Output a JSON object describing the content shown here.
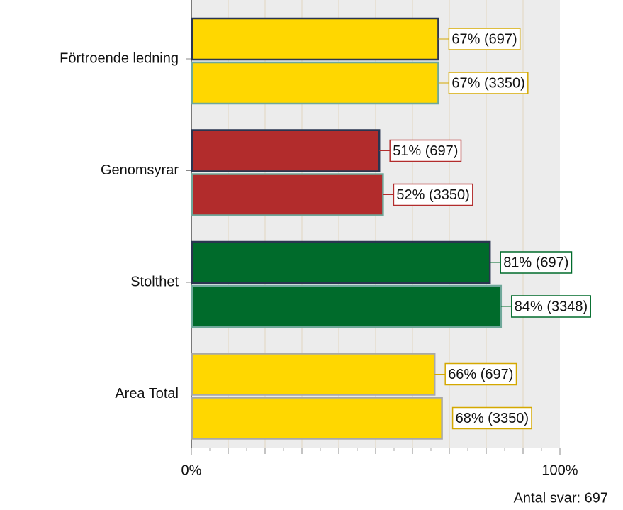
{
  "chart_data": {
    "type": "hbar_grouped",
    "categories": [
      "Förtroende ledning",
      "Genomsyrar",
      "Stolthet",
      "Area Total"
    ],
    "category_colors": [
      "#ffd700",
      "#b22c2c",
      "#006b2b",
      "#ffd700"
    ],
    "series": [
      {
        "values": [
          67,
          51,
          81,
          66
        ],
        "value_labels": [
          "67% (697)",
          "51% (697)",
          "81% (697)",
          "66% (697)"
        ],
        "edgecolors": [
          "#2a3550",
          "#2a3550",
          "#2a3550",
          "#a8a8a8"
        ]
      },
      {
        "values": [
          67,
          52,
          84,
          68
        ],
        "value_labels": [
          "67% (3350)",
          "52% (3350)",
          "84% (3348)",
          "68% (3350)"
        ],
        "edgecolors": [
          "#6fa89a",
          "#6fa89a",
          "#6fa89a",
          "#a8a8a8"
        ]
      }
    ],
    "xlim": [
      0,
      100
    ],
    "xticks": [
      {
        "value": 0,
        "label": "0%"
      },
      {
        "value": 100,
        "label": "100%"
      }
    ],
    "minor_xticks": [
      10,
      20,
      30,
      40,
      50,
      60,
      70,
      80,
      90
    ],
    "grid": true,
    "footnote": "Antal svar: 697"
  }
}
